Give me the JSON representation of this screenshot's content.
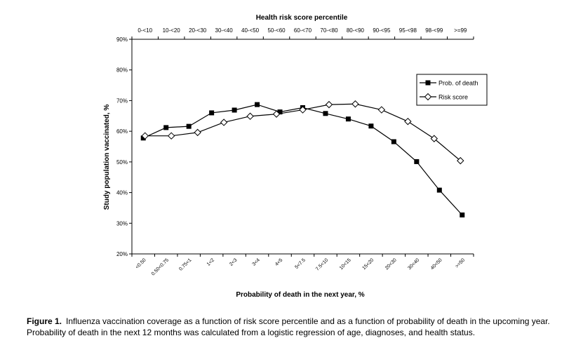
{
  "chart_data": {
    "type": "line",
    "title": "",
    "ylabel": "Study population vaccinated, %",
    "xlabel_bottom": "Probability of death in the next year, %",
    "xlabel_top": "Health risk score percentile",
    "ylim": [
      20,
      90
    ],
    "yticks": [
      "20%",
      "30%",
      "40%",
      "50%",
      "60%",
      "70%",
      "80%",
      "90%"
    ],
    "bottom_categories": [
      "<0.50",
      "0.50<0.75",
      "0.75<1",
      "1<2",
      "2<3",
      "3<4",
      "4<5",
      "5<7.5",
      "7.5<10",
      "10<15",
      "15<20",
      "20<30",
      "30<40",
      "40<50",
      ">=50"
    ],
    "top_categories": [
      "0-<10",
      "10-<20",
      "20-<30",
      "30-<40",
      "40-<50",
      "50-<60",
      "60-<70",
      "70-<80",
      "80-<90",
      "90-<95",
      "95-<98",
      "98-<99",
      ">=99"
    ],
    "grid": false,
    "legend_position": "top-right",
    "series": [
      {
        "name": "Prob. of death",
        "marker": "filled-square",
        "axis": "bottom",
        "values": [
          57.8,
          61.2,
          61.6,
          66.0,
          66.9,
          68.7,
          66.3,
          67.7,
          65.8,
          64.0,
          61.7,
          56.6,
          50.1,
          40.8,
          32.7
        ]
      },
      {
        "name": "Risk score",
        "marker": "open-diamond",
        "axis": "top",
        "values": [
          58.5,
          58.5,
          59.6,
          62.9,
          64.9,
          65.6,
          67.0,
          68.7,
          68.9,
          67.0,
          63.2,
          57.6,
          50.4
        ]
      }
    ]
  },
  "caption": {
    "label": "Figure 1.",
    "text": "Influenza vaccination coverage as a function of risk score percentile and as a function of probability of death in the upcoming year. Probability of death in the next 12 months was calculated from a logistic regression of age, diagnoses, and health status."
  }
}
